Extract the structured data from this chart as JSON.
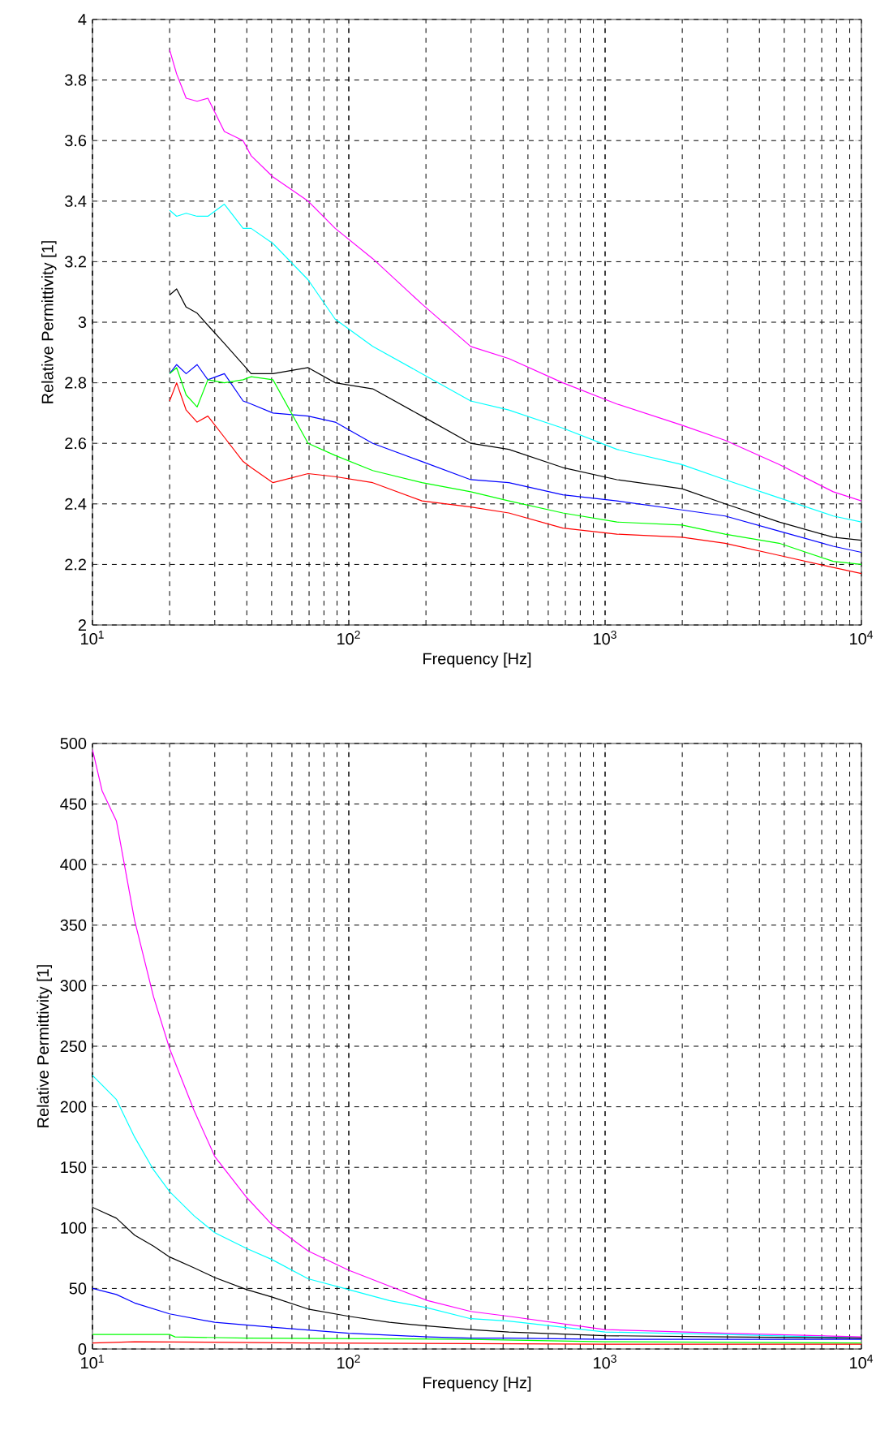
{
  "chart_data": [
    {
      "type": "line",
      "xlabel": "Frequency [Hz]",
      "ylabel": "Relative Permittivity [1]",
      "log": "x",
      "grid": true,
      "xlim": [
        10,
        10000
      ],
      "ylim": [
        2,
        4
      ],
      "xticks": [
        {
          "value": 10,
          "label": "10$^{1}$"
        },
        {
          "value": 100,
          "label": "10$^{2}$"
        },
        {
          "value": 1000,
          "label": "10$^{3}$"
        },
        {
          "value": 10000,
          "label": "10$^{4}$"
        }
      ],
      "yticks": [
        2,
        2.2,
        2.4,
        2.6,
        2.8,
        3,
        3.2,
        3.4,
        3.6,
        3.8,
        4
      ],
      "series": [
        {
          "color": "#ff00ff",
          "x": [
            20,
            21.3,
            23.2,
            25.6,
            28.2,
            32.7,
            38.7,
            41.6,
            50.6,
            69.4,
            88.5,
            124,
            193,
            299,
            421,
            684,
            1112,
            1995,
            2940,
            4775,
            7762,
            10000
          ],
          "values": [
            3.9,
            3.82,
            3.74,
            3.73,
            3.74,
            3.63,
            3.6,
            3.55,
            3.48,
            3.4,
            3.31,
            3.21,
            3.06,
            2.92,
            2.88,
            2.8,
            2.73,
            2.66,
            2.61,
            2.53,
            2.44,
            2.41
          ]
        },
        {
          "color": "#00ffff",
          "x": [
            20,
            21.3,
            23.2,
            25.6,
            28.2,
            32.7,
            38.7,
            41.6,
            50.6,
            69.4,
            88.5,
            124,
            193,
            299,
            421,
            684,
            1112,
            1995,
            2940,
            4775,
            7762,
            10000
          ],
          "values": [
            3.37,
            3.35,
            3.36,
            3.35,
            3.35,
            3.39,
            3.31,
            3.31,
            3.26,
            3.14,
            3.01,
            2.92,
            2.83,
            2.74,
            2.71,
            2.65,
            2.58,
            2.53,
            2.48,
            2.42,
            2.36,
            2.34
          ]
        },
        {
          "color": "#000000",
          "x": [
            20,
            21.3,
            23.2,
            25.6,
            28.2,
            32.7,
            38.7,
            41.6,
            50.6,
            69.4,
            88.5,
            124,
            193,
            299,
            421,
            684,
            1112,
            1995,
            2940,
            4775,
            7762,
            10000
          ],
          "values": [
            3.09,
            3.11,
            3.05,
            3.03,
            2.99,
            2.93,
            2.86,
            2.83,
            2.83,
            2.85,
            2.8,
            2.78,
            2.69,
            2.6,
            2.58,
            2.52,
            2.48,
            2.45,
            2.4,
            2.34,
            2.29,
            2.28
          ]
        },
        {
          "color": "#0000ff",
          "x": [
            20,
            21.3,
            23.2,
            25.6,
            28.2,
            32.7,
            38.7,
            41.6,
            50.6,
            69.4,
            88.5,
            124,
            193,
            299,
            421,
            684,
            1112,
            1995,
            2940,
            4775,
            7762,
            10000
          ],
          "values": [
            2.83,
            2.86,
            2.83,
            2.86,
            2.81,
            2.83,
            2.74,
            2.73,
            2.7,
            2.69,
            2.67,
            2.6,
            2.54,
            2.48,
            2.47,
            2.43,
            2.41,
            2.38,
            2.36,
            2.31,
            2.26,
            2.24
          ]
        },
        {
          "color": "#00ff00",
          "x": [
            20,
            21.3,
            23.2,
            25.6,
            28.2,
            32.7,
            38.7,
            41.6,
            50.6,
            69.4,
            88.5,
            124,
            193,
            299,
            421,
            684,
            1112,
            1995,
            2940,
            4775,
            7762,
            10000
          ],
          "values": [
            2.83,
            2.85,
            2.76,
            2.72,
            2.81,
            2.8,
            2.81,
            2.82,
            2.81,
            2.6,
            2.56,
            2.51,
            2.47,
            2.44,
            2.41,
            2.37,
            2.34,
            2.33,
            2.3,
            2.27,
            2.21,
            2.2
          ]
        },
        {
          "color": "#ff0000",
          "x": [
            20,
            21.3,
            23.2,
            25.6,
            28.2,
            32.7,
            38.7,
            41.6,
            50.6,
            69.4,
            88.5,
            124,
            193,
            299,
            421,
            684,
            1112,
            1995,
            2940,
            4775,
            7762,
            10000
          ],
          "values": [
            2.74,
            2.8,
            2.71,
            2.67,
            2.69,
            2.62,
            2.54,
            2.52,
            2.47,
            2.5,
            2.49,
            2.47,
            2.41,
            2.39,
            2.37,
            2.32,
            2.3,
            2.29,
            2.27,
            2.23,
            2.19,
            2.17
          ]
        }
      ]
    },
    {
      "type": "line",
      "xlabel": "Frequency [Hz]",
      "ylabel": "Relative Permittivity [1]",
      "log": "x",
      "grid": true,
      "xlim": [
        10,
        10000
      ],
      "ylim": [
        0,
        500
      ],
      "xticks": [
        {
          "value": 10,
          "label": "10$^{1}$"
        },
        {
          "value": 100,
          "label": "10$^{2}$"
        },
        {
          "value": 1000,
          "label": "10$^{3}$"
        },
        {
          "value": 10000,
          "label": "10$^{4}$"
        }
      ],
      "yticks": [
        0,
        50,
        100,
        150,
        200,
        250,
        300,
        350,
        400,
        450,
        500
      ],
      "series": [
        {
          "color": "#ff00ff",
          "x": [
            10,
            10.9,
            12.4,
            14.6,
            17.3,
            20,
            24.9,
            30,
            40,
            50,
            69.4,
            100,
            144,
            203,
            299,
            421,
            1000,
            2940,
            10000
          ],
          "values": [
            495,
            461,
            436,
            354,
            291,
            248,
            197,
            159,
            125,
            103,
            81,
            65,
            52,
            40,
            31,
            27,
            16,
            13,
            10
          ]
        },
        {
          "color": "#00ffff",
          "x": [
            10,
            12.4,
            14.6,
            17.3,
            20,
            24.9,
            30,
            40,
            50,
            69.4,
            100,
            144,
            203,
            299,
            421,
            1000,
            2940,
            10000
          ],
          "values": [
            226,
            206,
            175,
            148,
            130,
            110,
            96,
            83,
            74,
            58,
            49,
            40,
            34,
            25,
            23,
            14,
            12,
            9
          ]
        },
        {
          "color": "#000000",
          "x": [
            10,
            12.4,
            14.6,
            17.3,
            20,
            24.9,
            30,
            40,
            50,
            69.4,
            100,
            144,
            203,
            299,
            421,
            1000,
            2940,
            10000
          ],
          "values": [
            117,
            108,
            94,
            85,
            76,
            67,
            59,
            49,
            43,
            33,
            27,
            22,
            19,
            16,
            14,
            11,
            10,
            9
          ]
        },
        {
          "color": "#0000ff",
          "x": [
            10,
            12.4,
            14.6,
            20,
            30,
            50,
            100,
            203,
            299,
            421,
            1000,
            2940,
            10000
          ],
          "values": [
            50,
            45,
            38,
            29,
            22,
            18,
            13,
            10,
            9,
            9,
            8,
            8,
            8
          ]
        },
        {
          "color": "#00ff00",
          "x": [
            10,
            20,
            21,
            40,
            299,
            1000,
            10000
          ],
          "values": [
            12,
            12,
            10,
            9,
            8,
            6,
            5
          ]
        },
        {
          "color": "#ff0000",
          "x": [
            10,
            14.6,
            69.4,
            299,
            1000,
            10000
          ],
          "values": [
            5,
            6,
            5,
            4.5,
            4,
            4
          ]
        }
      ]
    }
  ]
}
